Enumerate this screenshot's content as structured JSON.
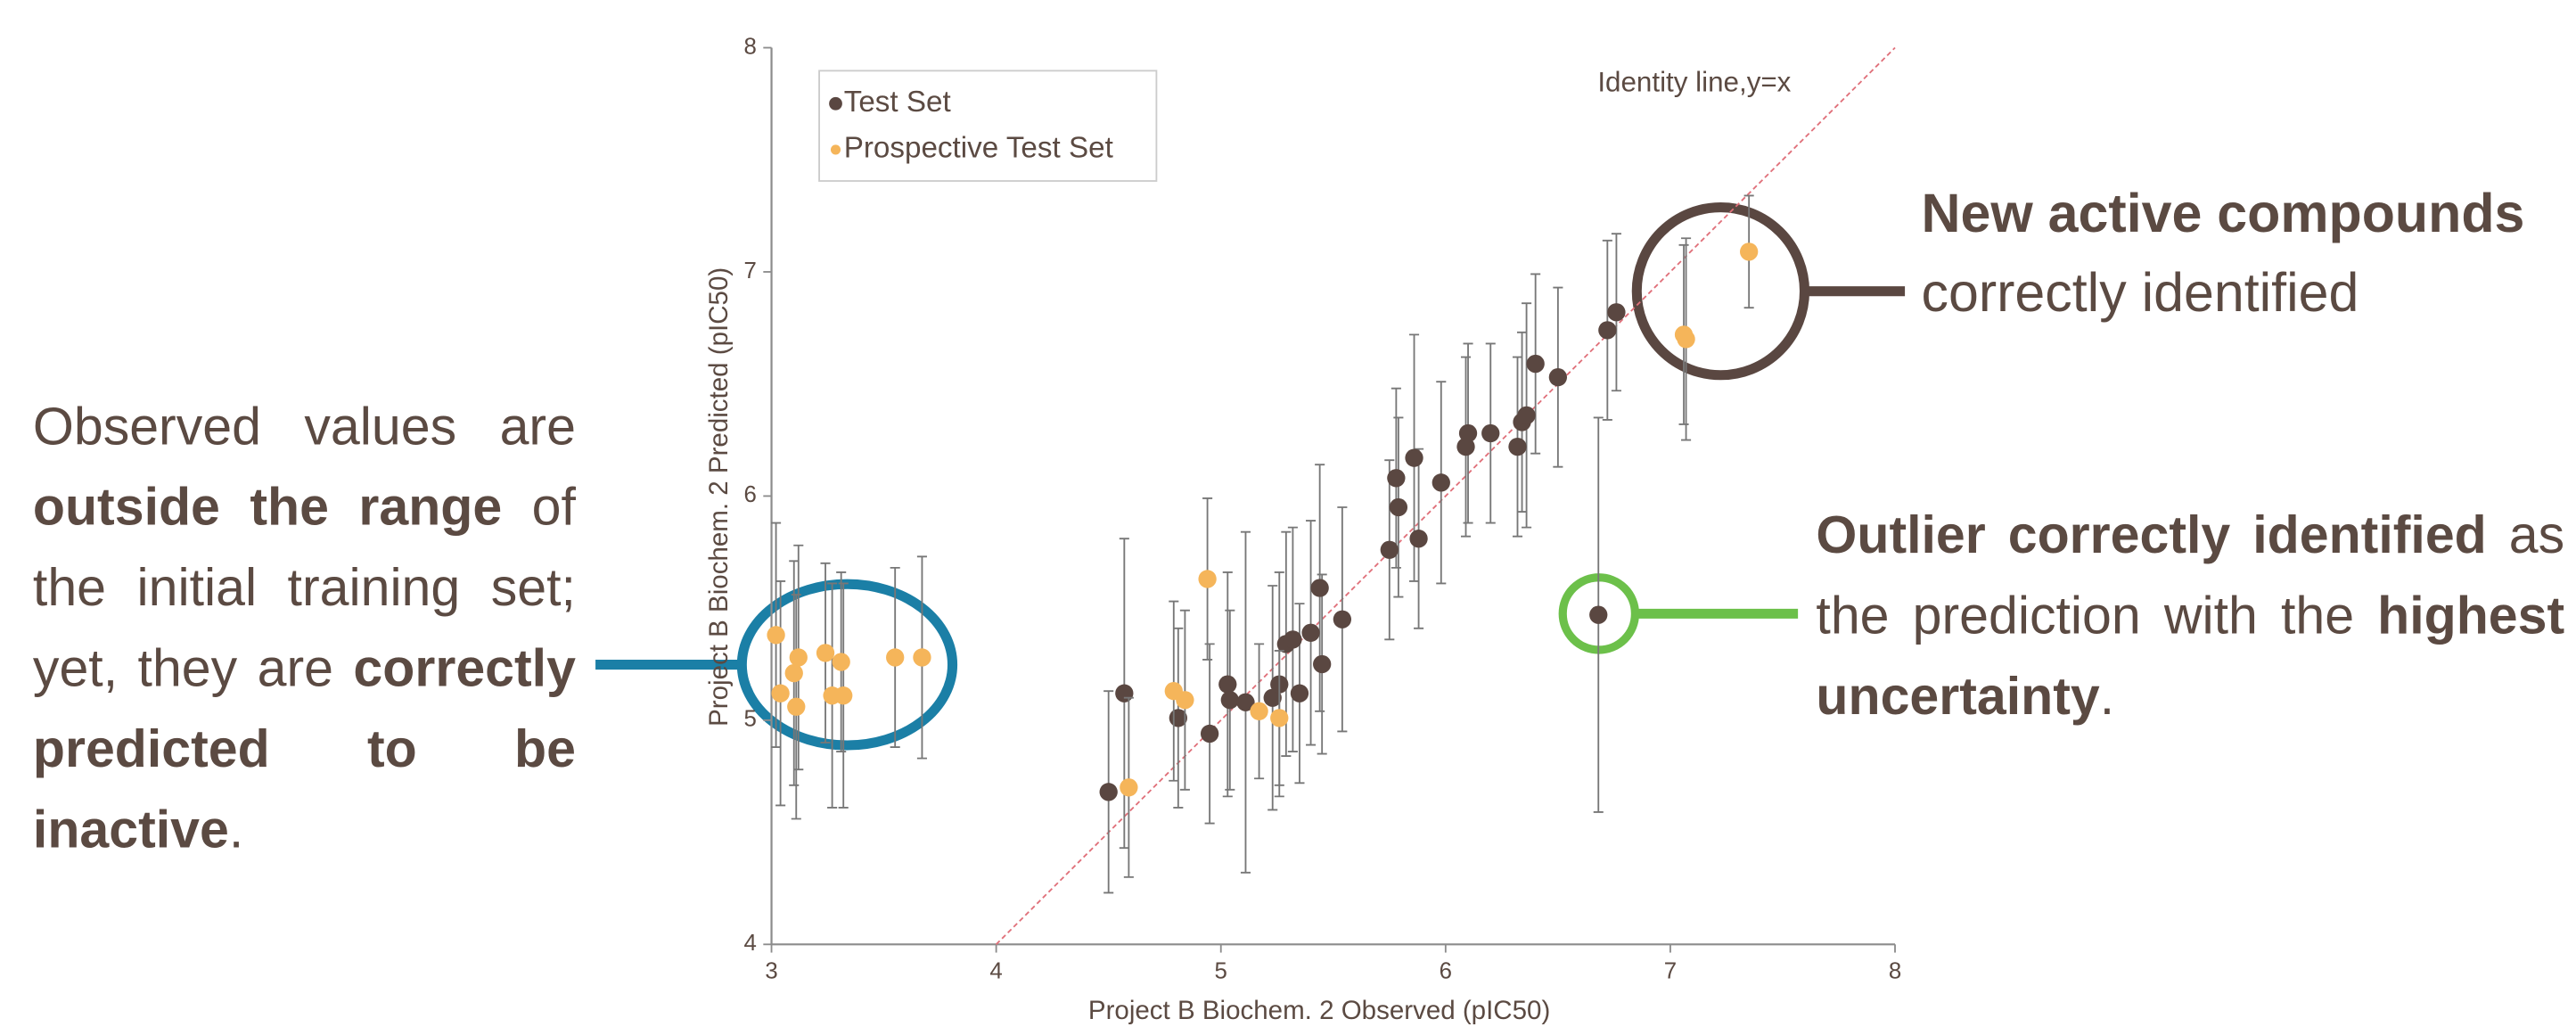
{
  "chart_data": {
    "type": "scatter",
    "x_label": "Project B Biochem. 2 Observed (pIC50)",
    "y_label": "Project B Biochem. 2 Predicted (pIC50)",
    "identity_label": "Identity line,y=x",
    "xlim": [
      3,
      8
    ],
    "ylim": [
      4,
      8
    ],
    "xticks": [
      3,
      4,
      5,
      6,
      7,
      8
    ],
    "yticks": [
      4,
      5,
      6,
      7,
      8
    ],
    "legend": "upper left",
    "series": [
      {
        "name": "Test Set",
        "color": "#5a4741",
        "x": [
          4.5,
          4.57,
          4.81,
          4.95,
          5.03,
          5.04,
          5.11,
          5.23,
          5.26,
          5.29,
          5.32,
          5.35,
          5.4,
          5.45,
          5.44,
          5.54,
          5.75,
          5.78,
          5.79,
          5.86,
          5.88,
          5.98,
          6.09,
          6.1,
          6.2,
          6.32,
          6.34,
          6.36,
          6.4,
          6.5,
          6.72,
          6.76,
          6.68
        ],
        "values": [
          4.68,
          5.12,
          5.01,
          4.94,
          5.16,
          5.09,
          5.08,
          5.1,
          5.16,
          5.34,
          5.36,
          5.12,
          5.39,
          5.25,
          5.59,
          5.45,
          5.76,
          6.08,
          5.95,
          6.17,
          5.81,
          6.06,
          6.22,
          6.28,
          6.28,
          6.22,
          6.33,
          6.36,
          6.59,
          6.53,
          6.74,
          6.82,
          5.47
        ],
        "errors": [
          0.45,
          0.69,
          0.4,
          0.4,
          0.5,
          0.4,
          0.76,
          0.5,
          0.5,
          0.5,
          0.5,
          0.4,
          0.5,
          0.4,
          0.55,
          0.5,
          0.4,
          0.4,
          0.4,
          0.55,
          0.4,
          0.45,
          0.4,
          0.4,
          0.4,
          0.4,
          0.4,
          0.5,
          0.4,
          0.4,
          0.4,
          0.35,
          0.88
        ]
      },
      {
        "name": "Prospective Test Set",
        "color": "#f5b55a",
        "x": [
          3.02,
          3.04,
          3.1,
          3.11,
          3.12,
          3.24,
          3.27,
          3.31,
          3.32,
          3.55,
          3.67,
          4.59,
          4.79,
          4.84,
          4.94,
          5.17,
          5.26,
          7.06,
          7.07,
          7.35
        ],
        "values": [
          5.38,
          5.12,
          5.21,
          5.06,
          5.28,
          5.3,
          5.11,
          5.26,
          5.11,
          5.28,
          5.28,
          4.7,
          5.13,
          5.09,
          5.63,
          5.04,
          5.01,
          6.72,
          6.7,
          7.09
        ],
        "errors": [
          0.5,
          0.5,
          0.5,
          0.5,
          0.5,
          0.4,
          0.5,
          0.4,
          0.5,
          0.4,
          0.45,
          0.4,
          0.4,
          0.4,
          0.36,
          0.3,
          0.3,
          0.4,
          0.45,
          0.25
        ]
      }
    ]
  },
  "annotations": {
    "left": [
      "Observed values are ",
      "outside the range",
      " of the initial training set; yet, they are ",
      "correctly predicted to be inactive",
      "."
    ],
    "top_right": [
      "New active compounds",
      "correctly identified"
    ],
    "mid_right": [
      "Outlier correctly identified",
      " as the prediction with the ",
      "highest uncertainty",
      "."
    ]
  }
}
